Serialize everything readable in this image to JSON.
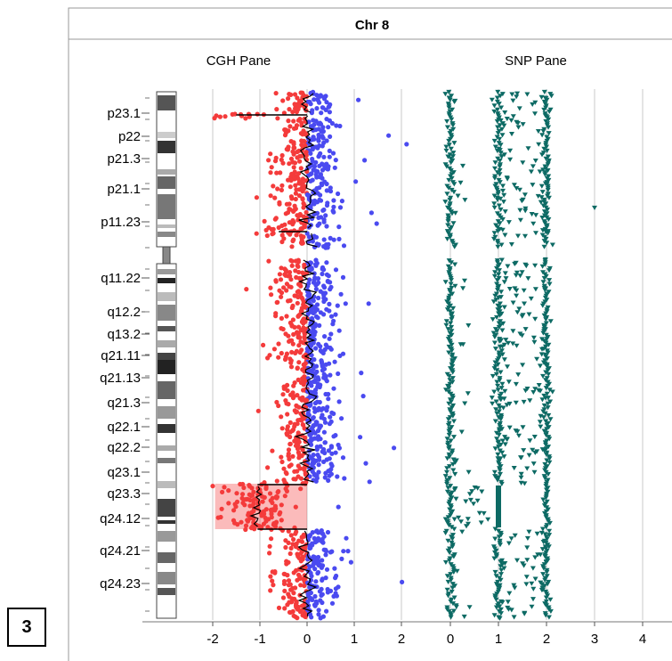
{
  "panel_label": "3",
  "chart_data": {
    "type": "scatter",
    "title": "Chr 8",
    "panes": [
      {
        "name": "CGH Pane",
        "xticks": [
          -2,
          -1,
          0,
          1,
          2
        ],
        "xlim": [
          -2.3,
          2.2
        ],
        "loss_color": "#f43b3b",
        "gain_color": "#4a4af0",
        "line_color": "#000000",
        "segments": [
          {
            "from_band": "p23.1-start",
            "to_band": "p23.1",
            "level": -1.5
          },
          {
            "from_band": "p23.1",
            "to_band": "p11.23",
            "level": 0.0
          },
          {
            "from_band": "p11.23",
            "to_band": "p11.23-end",
            "level": -0.6
          },
          {
            "from_band": "q11.22",
            "to_band": "q23.1",
            "level": 0.0
          },
          {
            "from_band": "q23.3",
            "to_band": "q24.12",
            "level": -1.05
          },
          {
            "from_band": "q24.21",
            "to_band": "q24.23-end",
            "level": 0.0
          }
        ]
      },
      {
        "name": "SNP Pane",
        "xticks": [
          0,
          1,
          2,
          3,
          4
        ],
        "xlim": [
          -0.3,
          4.6
        ],
        "point_color": "#0d6a64",
        "dense_tracks": [
          0,
          1,
          2
        ]
      }
    ],
    "bands": [
      {
        "name": "p23.1",
        "label": "p23.1"
      },
      {
        "name": "p22",
        "label": "p22"
      },
      {
        "name": "p21.3",
        "label": "p21.3"
      },
      {
        "name": "p21.1",
        "label": "p21.1"
      },
      {
        "name": "p11.23",
        "label": "p11.23"
      },
      {
        "name": "q11.22",
        "label": "q11.22"
      },
      {
        "name": "q12.2",
        "label": "q12.2"
      },
      {
        "name": "q13.2",
        "label": "q13.2"
      },
      {
        "name": "q21.11",
        "label": "q21.11"
      },
      {
        "name": "q21.13",
        "label": "q21.13"
      },
      {
        "name": "q21.3",
        "label": "q21.3"
      },
      {
        "name": "q22.1",
        "label": "q22.1"
      },
      {
        "name": "q22.2",
        "label": "q22.2"
      },
      {
        "name": "q23.1",
        "label": "q23.1"
      },
      {
        "name": "q23.3",
        "label": "q23.3"
      },
      {
        "name": "q24.12",
        "label": "q24.12"
      },
      {
        "name": "q24.21",
        "label": "q24.21"
      },
      {
        "name": "q24.23",
        "label": "q24.23"
      }
    ],
    "grid": true
  }
}
